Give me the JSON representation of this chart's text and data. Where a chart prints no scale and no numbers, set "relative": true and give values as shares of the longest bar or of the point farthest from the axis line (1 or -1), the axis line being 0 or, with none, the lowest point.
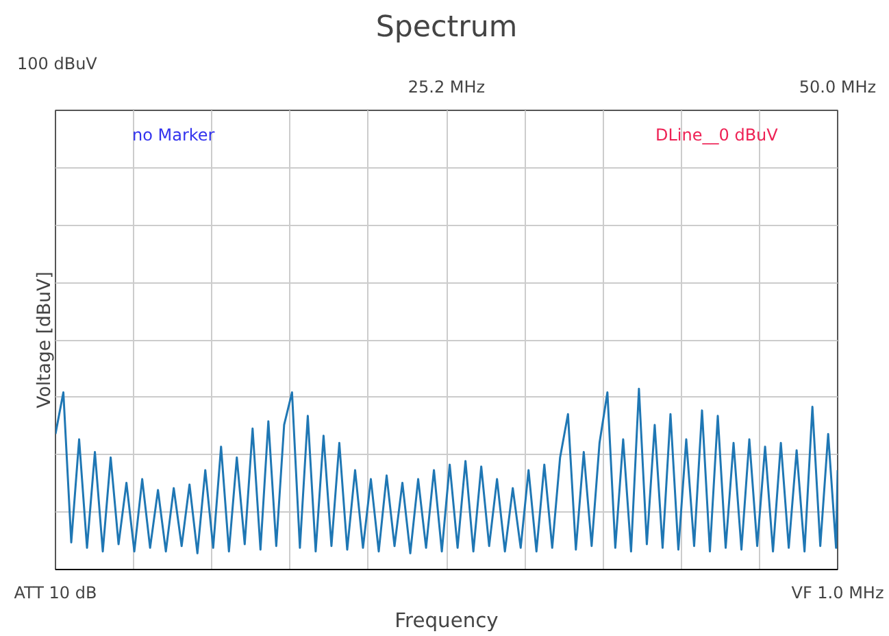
{
  "chart_data": {
    "type": "line",
    "title": "Spectrum",
    "xlabel": "Frequency",
    "ylabel": "Voltage [dBuV]",
    "annotations": [
      "no Marker",
      "DLine__0 dBuV",
      "ATT 10 dB",
      "VF 1.0 MHz",
      "100 dBuV"
    ],
    "relative": true,
    "grid": true,
    "line_style": "solid",
    "xlim": [
      0.4,
      50.0
    ],
    "xticks": [
      {
        "value": 25.2,
        "label": "25.2 MHz"
      },
      {
        "value": 50.0,
        "label": "50.0 MHz"
      }
    ],
    "x": [
      0.4,
      0.9,
      1.4,
      1.9,
      2.4,
      2.9,
      3.4,
      3.9,
      4.4,
      4.9,
      5.4,
      5.9,
      6.4,
      6.9,
      7.4,
      7.9,
      8.4,
      8.9,
      9.4,
      9.9,
      10.4,
      10.9,
      11.4,
      11.9,
      12.4,
      12.9,
      13.4,
      13.9,
      14.4,
      14.9,
      15.4,
      15.9,
      16.4,
      16.9,
      17.4,
      17.9,
      18.4,
      18.9,
      19.4,
      19.9,
      20.4,
      20.9,
      21.4,
      21.9,
      22.4,
      22.9,
      23.4,
      23.9,
      24.4,
      24.9,
      25.4,
      25.9,
      26.4,
      26.9,
      27.4,
      27.9,
      28.4,
      28.9,
      29.4,
      29.9,
      30.4,
      30.9,
      31.4,
      31.9,
      32.4,
      32.9,
      33.4,
      33.9,
      34.4,
      34.9,
      35.4,
      35.9,
      36.4,
      36.9,
      37.4,
      37.9,
      38.4,
      38.9,
      39.4,
      39.9,
      40.4,
      40.9,
      41.4,
      41.9,
      42.4,
      42.9,
      43.4,
      43.9,
      44.4,
      44.9,
      45.4,
      45.9,
      46.4,
      46.9,
      47.4,
      47.9,
      48.4,
      48.9,
      49.4,
      49.9,
      50.0
    ],
    "series": [
      {
        "color": "#1f77b4",
        "values": [
          0.75,
          0.98,
          0.15,
          0.72,
          0.12,
          0.65,
          0.1,
          0.62,
          0.14,
          0.48,
          0.1,
          0.5,
          0.12,
          0.44,
          0.1,
          0.45,
          0.13,
          0.47,
          0.09,
          0.55,
          0.12,
          0.68,
          0.1,
          0.62,
          0.14,
          0.78,
          0.11,
          0.82,
          0.13,
          0.8,
          0.98,
          0.12,
          0.85,
          0.1,
          0.74,
          0.13,
          0.7,
          0.11,
          0.55,
          0.12,
          0.5,
          0.1,
          0.52,
          0.13,
          0.48,
          0.09,
          0.5,
          0.12,
          0.55,
          0.1,
          0.58,
          0.12,
          0.6,
          0.1,
          0.57,
          0.13,
          0.5,
          0.1,
          0.45,
          0.12,
          0.55,
          0.1,
          0.58,
          0.12,
          0.62,
          0.86,
          0.11,
          0.65,
          0.13,
          0.7,
          0.98,
          0.12,
          0.72,
          0.1,
          1.0,
          0.14,
          0.8,
          0.12,
          0.86,
          0.11,
          0.72,
          0.13,
          0.88,
          0.1,
          0.85,
          0.12,
          0.7,
          0.11,
          0.72,
          0.13,
          0.68,
          0.1,
          0.7,
          0.12,
          0.66,
          0.1,
          0.9,
          0.13,
          0.75,
          0.12,
          0.55
        ]
      }
    ]
  }
}
